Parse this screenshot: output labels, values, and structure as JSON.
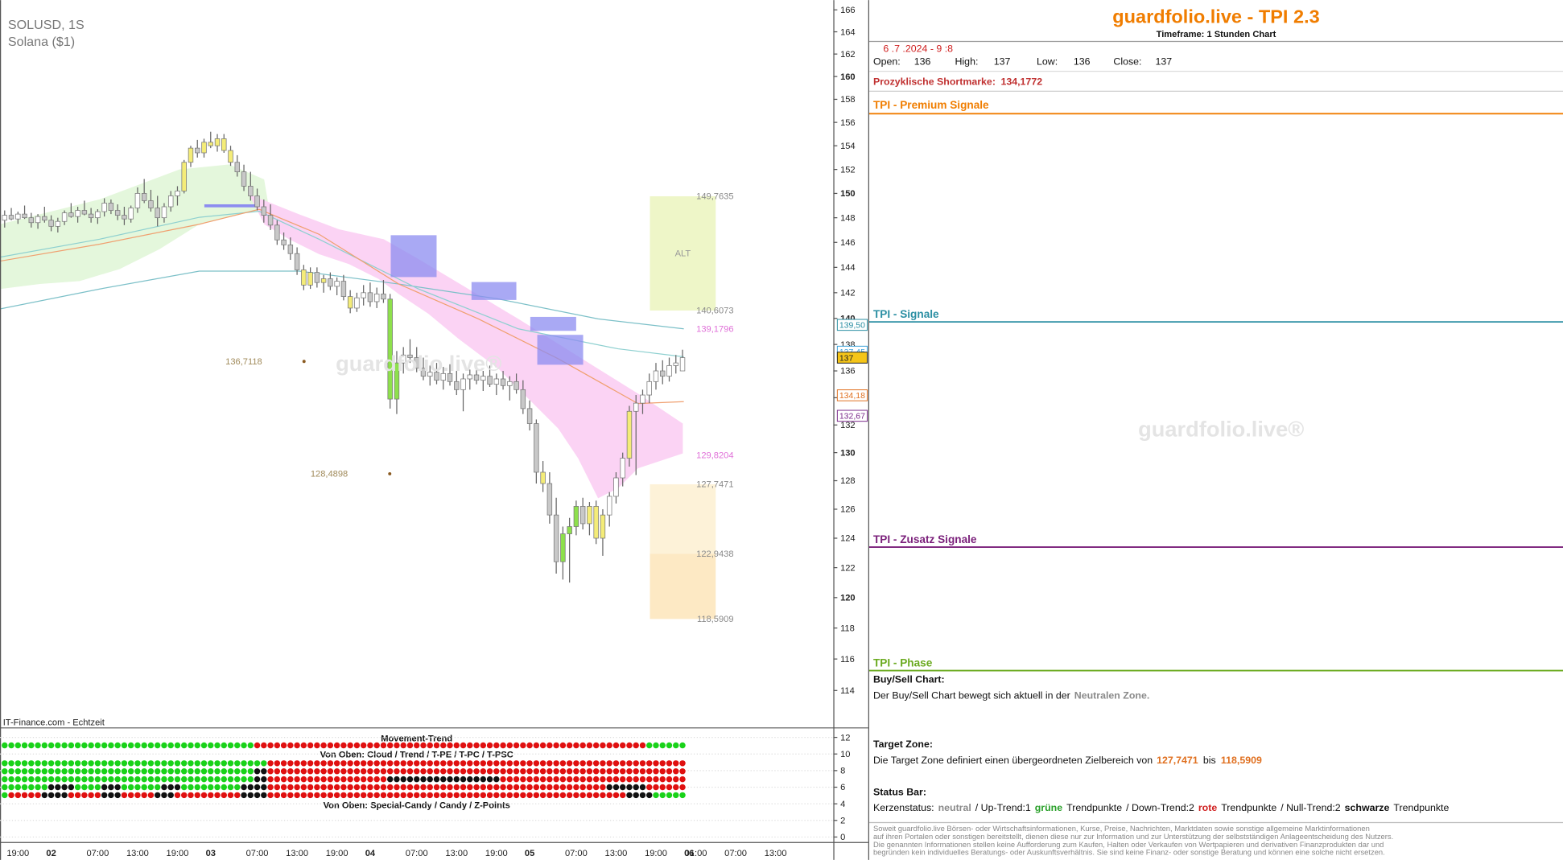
{
  "chart_data": {
    "type": "candlestick",
    "symbol": "SOLUSD, 1S",
    "subtitle": "Solana ($1)",
    "source": "IT-Finance.com - Echtzeit",
    "watermark": "guardfolio.live®",
    "log_scale": true,
    "grid": false,
    "ylim": [
      111.7,
      166.9
    ],
    "yticks": [
      114,
      116,
      118,
      120,
      122,
      124,
      126,
      128,
      130,
      132,
      134,
      136,
      138,
      140,
      142,
      144,
      146,
      148,
      150,
      152,
      154,
      156,
      158,
      160,
      162,
      164,
      166
    ],
    "categories": [
      null,
      null,
      "19:00",
      null,
      null,
      null,
      null,
      "02",
      null,
      null,
      null,
      null,
      null,
      null,
      "07:00",
      null,
      null,
      null,
      null,
      null,
      "13:00",
      null,
      null,
      null,
      null,
      null,
      "19:00",
      null,
      null,
      null,
      null,
      "03",
      null,
      null,
      null,
      null,
      null,
      null,
      "07:00",
      null,
      null,
      null,
      null,
      null,
      "13:00",
      null,
      null,
      null,
      null,
      null,
      "19:00",
      null,
      null,
      null,
      null,
      "04",
      null,
      null,
      null,
      null,
      null,
      null,
      "07:00",
      null,
      null,
      null,
      null,
      null,
      "13:00",
      null,
      null,
      null,
      null,
      null,
      "19:00",
      null,
      null,
      null,
      null,
      "05",
      null,
      null,
      null,
      null,
      null,
      null,
      "07:00",
      null,
      null,
      null,
      null,
      null,
      "13:00",
      null,
      null,
      null,
      null,
      null,
      "19:00",
      null,
      null,
      null,
      null,
      "06",
      "01:00",
      null,
      null,
      null,
      null,
      null,
      "07:00",
      null,
      null,
      null,
      null,
      null,
      "13:00"
    ],
    "open": [
      147.8,
      148.2,
      147.9,
      148.3,
      148.0,
      147.6,
      148.1,
      147.8,
      147.3,
      147.7,
      148.4,
      148.1,
      148.6,
      148.3,
      148.0,
      148.5,
      149.2,
      148.6,
      148.2,
      147.9,
      148.8,
      150.0,
      149.4,
      148.8,
      148.0,
      148.9,
      149.8,
      150.2,
      152.6,
      153.8,
      153.4,
      154.3,
      154.0,
      154.6,
      153.6,
      152.6,
      151.8,
      150.6,
      149.8,
      148.9,
      148.2,
      147.4,
      146.2,
      145.8,
      145.1,
      143.8,
      142.6,
      143.6,
      142.8,
      143.1,
      142.5,
      142.9,
      141.7,
      140.8,
      141.6,
      142.0,
      141.3,
      141.9,
      141.5,
      133.9,
      136.6,
      137.2,
      137.0,
      136.2,
      135.6,
      135.9,
      135.3,
      135.8,
      135.2,
      134.6,
      135.4,
      135.7,
      135.3,
      135.6,
      135.0,
      135.4,
      134.9,
      135.2,
      134.6,
      133.2,
      132.1,
      128.6,
      127.8,
      125.6,
      122.4,
      124.3,
      124.8,
      126.2,
      125.0,
      126.2,
      124.0,
      125.6,
      126.9,
      128.2,
      129.6,
      133.0,
      133.6,
      134.2,
      135.2,
      136.0,
      135.6,
      136.4,
      136.0,
      null,
      null,
      null,
      null,
      null,
      null,
      null,
      null,
      null,
      null,
      null,
      null,
      null,
      null
    ],
    "high": [
      148.6,
      148.8,
      148.5,
      149.0,
      148.4,
      148.3,
      148.9,
      148.2,
      148.0,
      148.6,
      149.2,
      148.9,
      149.4,
      148.8,
      148.7,
      149.6,
      149.5,
      149.1,
      148.9,
      149.0,
      150.5,
      151.2,
      150.3,
      149.8,
      149.2,
      150.2,
      150.6,
      152.8,
      154.0,
      154.5,
      154.6,
      155.2,
      155.0,
      155.0,
      154.0,
      153.2,
      152.4,
      151.8,
      150.4,
      149.5,
      149.1,
      147.8,
      146.8,
      146.4,
      145.6,
      144.2,
      144.0,
      144.0,
      143.4,
      143.6,
      143.2,
      143.4,
      142.2,
      142.0,
      142.6,
      142.8,
      142.4,
      143.0,
      141.9,
      137.5,
      137.8,
      138.4,
      137.8,
      137.0,
      136.4,
      136.6,
      136.3,
      136.5,
      136.0,
      135.8,
      136.1,
      136.6,
      136.0,
      136.4,
      135.8,
      136.0,
      135.6,
      135.8,
      135.3,
      133.8,
      132.4,
      129.4,
      128.6,
      126.8,
      124.8,
      125.4,
      126.6,
      126.8,
      126.5,
      126.6,
      126.0,
      127.2,
      128.6,
      130.0,
      133.4,
      134.2,
      134.6,
      135.8,
      136.6,
      136.8,
      137.0,
      137.2,
      137.6,
      null,
      null,
      null,
      null,
      null,
      null,
      null,
      null,
      null,
      null,
      null,
      null,
      null,
      null
    ],
    "low": [
      147.2,
      147.8,
      147.5,
      147.9,
      147.2,
      147.1,
      147.6,
      146.9,
      146.8,
      147.4,
      148.0,
      147.6,
      148.2,
      147.6,
      147.5,
      148.1,
      148.3,
      147.8,
      147.4,
      147.6,
      148.4,
      149.2,
      148.5,
      147.3,
      147.6,
      148.5,
      149.0,
      150.0,
      152.2,
      153.0,
      153.0,
      153.8,
      153.5,
      153.4,
      152.3,
      151.4,
      150.2,
      149.4,
      148.6,
      147.6,
      147.0,
      145.8,
      145.4,
      144.6,
      143.4,
      142.2,
      142.3,
      142.4,
      142.0,
      142.2,
      141.8,
      141.4,
      140.4,
      140.5,
      141.0,
      140.9,
      140.8,
      141.2,
      133.2,
      132.8,
      135.8,
      136.6,
      135.9,
      135.3,
      134.9,
      135.0,
      134.6,
      134.9,
      134.2,
      133.0,
      134.6,
      135.0,
      134.5,
      134.8,
      134.2,
      134.6,
      133.8,
      134.3,
      132.8,
      131.6,
      127.8,
      127.2,
      125.0,
      121.6,
      121.2,
      121.0,
      124.2,
      124.6,
      124.2,
      123.6,
      122.8,
      124.8,
      126.4,
      127.6,
      129.0,
      128.4,
      132.8,
      133.6,
      134.6,
      135.0,
      135.2,
      135.8,
      136.0,
      null,
      null,
      null,
      null,
      null,
      null,
      null,
      null,
      null,
      null,
      null,
      null,
      null,
      null
    ],
    "close": [
      148.2,
      147.9,
      148.3,
      148.0,
      147.6,
      148.1,
      147.8,
      147.3,
      147.7,
      148.4,
      148.1,
      148.6,
      148.3,
      148.0,
      148.5,
      149.2,
      148.6,
      148.2,
      147.9,
      148.8,
      150.0,
      149.4,
      148.8,
      148.0,
      148.9,
      149.8,
      150.2,
      152.6,
      153.8,
      153.4,
      154.3,
      154.0,
      154.6,
      153.6,
      152.6,
      151.8,
      150.6,
      149.8,
      148.9,
      148.2,
      147.4,
      146.2,
      145.8,
      145.1,
      143.8,
      142.6,
      143.6,
      142.8,
      143.1,
      142.5,
      142.9,
      141.7,
      140.8,
      141.6,
      142.0,
      141.3,
      141.9,
      141.5,
      133.9,
      136.6,
      137.2,
      137.0,
      136.2,
      135.6,
      135.9,
      135.3,
      135.8,
      135.2,
      134.6,
      135.4,
      135.7,
      135.3,
      135.6,
      135.0,
      135.4,
      134.9,
      135.2,
      134.6,
      133.2,
      132.1,
      128.6,
      127.8,
      125.6,
      122.4,
      124.3,
      124.8,
      126.2,
      125.0,
      126.2,
      124.0,
      125.6,
      126.9,
      128.2,
      129.6,
      133.0,
      133.6,
      134.2,
      135.2,
      136.0,
      135.6,
      136.4,
      136.6,
      137.0,
      null,
      null,
      null,
      null,
      null,
      null,
      null,
      null,
      null,
      null,
      null,
      null,
      null,
      null
    ],
    "colors": [
      "#ffffff",
      "#c8c8c8",
      "#ffffff",
      "#c8c8c8",
      "#c8c8c8",
      "#ffffff",
      "#c8c8c8",
      "#c8c8c8",
      "#ffffff",
      "#ffffff",
      "#c8c8c8",
      "#ffffff",
      "#c8c8c8",
      "#c8c8c8",
      "#ffffff",
      "#ffffff",
      "#c8c8c8",
      "#c8c8c8",
      "#c8c8c8",
      "#ffffff",
      "#ffffff",
      "#c8c8c8",
      "#c8c8c8",
      "#c8c8c8",
      "#ffffff",
      "#ffffff",
      "#ffffff",
      "#f4ec78",
      "#f4ec78",
      "#c8c8c8",
      "#f4ec78",
      "#f4ec78",
      "#f4ec78",
      "#f4ec78",
      "#f4ec78",
      "#c8c8c8",
      "#c8c8c8",
      "#c8c8c8",
      "#c8c8c8",
      "#c8c8c8",
      "#c8c8c8",
      "#c8c8c8",
      "#c8c8c8",
      "#c8c8c8",
      "#c8c8c8",
      "#f4ec78",
      "#f4ec78",
      "#c8c8c8",
      "#f4ec78",
      "#c8c8c8",
      "#ffffff",
      "#c8c8c8",
      "#f4ec78",
      "#ffffff",
      "#ffffff",
      "#c8c8c8",
      "#ffffff",
      "#c8c8c8",
      "#8ee04c",
      "#8ee04c",
      "#ffffff",
      "#c8c8c8",
      "#c8c8c8",
      "#c8c8c8",
      "#ffffff",
      "#c8c8c8",
      "#ffffff",
      "#c8c8c8",
      "#c8c8c8",
      "#ffffff",
      "#ffffff",
      "#c8c8c8",
      "#ffffff",
      "#c8c8c8",
      "#ffffff",
      "#c8c8c8",
      "#ffffff",
      "#c8c8c8",
      "#c8c8c8",
      "#c8c8c8",
      "#c8c8c8",
      "#f4ec78",
      "#c8c8c8",
      "#c8c8c8",
      "#8ee04c",
      "#8ee04c",
      "#8ee04c",
      "#c8c8c8",
      "#f4ec78",
      "#f4ec78",
      "#f4ec78",
      "#ffffff",
      "#ffffff",
      "#ffffff",
      "#f4ec78",
      "#ffffff",
      "#ffffff",
      "#ffffff",
      "#ffffff",
      "#c8c8c8",
      "#ffffff",
      "#ffffff",
      "#ffffff",
      null,
      null,
      null,
      null,
      null,
      null,
      null,
      null,
      null,
      null,
      null,
      null,
      null,
      null
    ],
    "levels": [
      {
        "value": 149.7635,
        "label": "149,7635",
        "color": "#8a8a8a"
      },
      {
        "value": 140.6073,
        "label": "140,6073",
        "color": "#8a8a8a"
      },
      {
        "value": 139.1796,
        "label": "139,1796",
        "color": "#e070d8"
      },
      {
        "value": 129.8204,
        "label": "129,8204",
        "color": "#e070d8"
      },
      {
        "value": 127.7471,
        "label": "127,7471",
        "color": "#8a8a8a"
      },
      {
        "value": 122.9438,
        "label": "122,9438",
        "color": "#8a8a8a"
      },
      {
        "value": 118.5909,
        "label": "118,5909",
        "color": "#8a8a8a"
      }
    ],
    "zone_label": "ALT",
    "zone_colors": [
      "#eef6c8",
      "#fdf2d8",
      "#fde9c4"
    ],
    "annotations": [
      {
        "value": 136.7118,
        "label": "136,7118",
        "color": "#a08a5a"
      },
      {
        "value": 128.4898,
        "label": "128,4898",
        "color": "#a08a5a"
      }
    ],
    "price_markers": [
      {
        "value": 139.5,
        "label": "139,50",
        "color": "#2b8fa3",
        "background": "#ffffff"
      },
      {
        "value": 137.45,
        "label": "137,45",
        "color": "#3aa0d8",
        "background": "#ffffff"
      },
      {
        "value": 137,
        "label": "137",
        "color": "#222222",
        "background": "#f5c518"
      },
      {
        "value": 134.18,
        "label": "134,18",
        "color": "#e07020",
        "background": "#ffffff"
      },
      {
        "value": 132.67,
        "label": "132,67",
        "color": "#7a2a8a",
        "background": "#ffffff"
      }
    ],
    "indicator": {
      "title": "Movement-Trend",
      "cloud_label": "Von Oben: Cloud / Trend / T-PE / T-PC / T-PSC",
      "candy_label": "Von Oben: Special-Candy / Candy / Z-Points",
      "ylim": [
        -0.6,
        13.2
      ],
      "yticks": [
        0,
        2,
        4,
        6,
        8,
        10,
        12
      ]
    }
  },
  "panel": {
    "title": "guardfolio.live - TPI 2.3",
    "timeframe": "Timeframe: 1 Stunden Chart",
    "date": "6 .7 .2024 - 9 :8",
    "ohlc": [
      {
        "label": "Open:",
        "value": 136
      },
      {
        "label": "High:",
        "value": 137
      },
      {
        "label": "Low:",
        "value": 136
      },
      {
        "label": "Close:",
        "value": 137
      }
    ],
    "shortmark_label": "Prozyklische Shortmarke:",
    "shortmark": "134,1772",
    "sections": [
      "TPI - Premium Signale",
      "TPI - Signale",
      "TPI - Zusatz Signale",
      "TPI - Phase"
    ],
    "buysell": {
      "heading": "Buy/Sell Chart:",
      "text": "Der Buy/Sell Chart bewegt sich aktuell in der",
      "zone": "Neutralen Zone."
    },
    "target": {
      "heading": "Target Zone:",
      "text": "Die Target Zone definiert einen übergeordneten Zielbereich von",
      "from": "127,7471",
      "between": "bis",
      "to": "118,5909"
    },
    "status": {
      "heading": "Status Bar:",
      "parts": [
        "Kerzenstatus:",
        "neutral",
        "/ Up-Trend:1",
        "grüne",
        "Trendpunkte",
        "/ Down-Trend:2",
        "rote",
        "Trendpunkte",
        "/ Null-Trend:2",
        "schwarze",
        "Trendpunkte"
      ]
    },
    "disclaimer": [
      "Soweit guardfolio.live Börsen- oder Wirtschaftsinformationen, Kurse, Preise, Nachrichten, Marktdaten sowie sonstige allgemeine Marktinformationen",
      "auf ihren Portalen oder sonstigen bereitstellt, dienen diese nur zur Information und zur Unterstützung der selbstständigen Anlageentscheidung des Nutzers.",
      "Die genannten Informationen stellen keine Aufforderung zum Kaufen, Halten oder Verkaufen von Wertpapieren und derivativen Finanzprodukten dar und",
      "begründen kein individuelles Beratungs- oder Auskunftsverhältnis. Sie sind keine Finanz- oder sonstige Beratung und können eine solche nicht ersetzen."
    ],
    "watermark": "guardfolio.live®"
  }
}
